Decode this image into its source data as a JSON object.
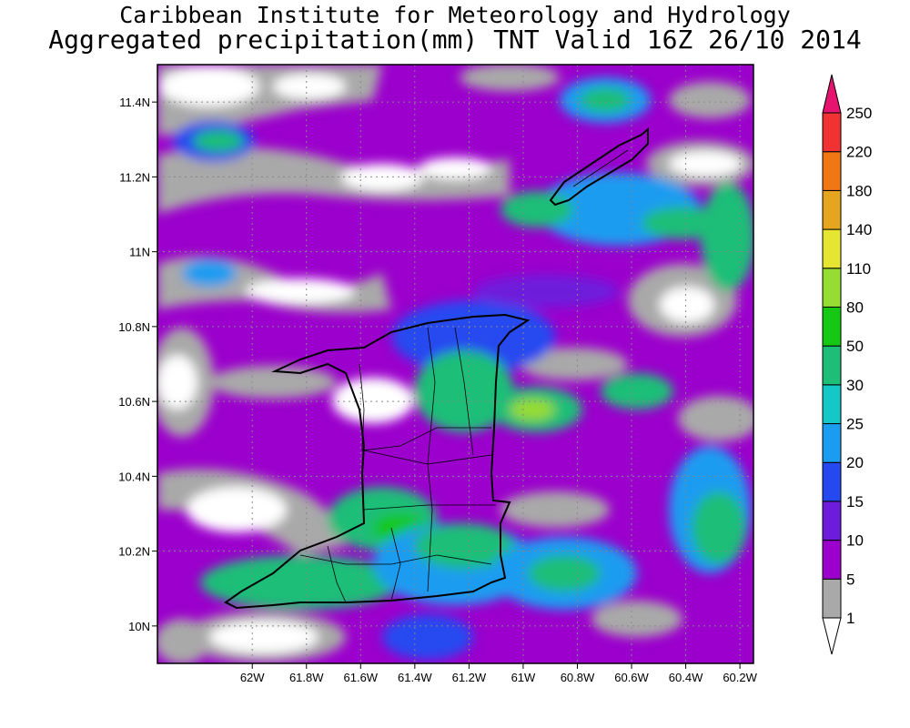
{
  "title": {
    "line1": "Caribbean Institute for Meteorology and Hydrology",
    "line2": "Aggregated precipitation(mm) TNT Valid 16Z 26/10 2014"
  },
  "map": {
    "lon_range": [
      -62.35,
      -60.15
    ],
    "lat_range": [
      9.9,
      11.5
    ],
    "x_ticks": [
      {
        "lon": -62.0,
        "label": "62W"
      },
      {
        "lon": -61.8,
        "label": "61.8W"
      },
      {
        "lon": -61.6,
        "label": "61.6W"
      },
      {
        "lon": -61.4,
        "label": "61.4W"
      },
      {
        "lon": -61.2,
        "label": "61.2W"
      },
      {
        "lon": -61.0,
        "label": "61W"
      },
      {
        "lon": -60.8,
        "label": "60.8W"
      },
      {
        "lon": -60.6,
        "label": "60.6W"
      },
      {
        "lon": -60.4,
        "label": "60.4W"
      },
      {
        "lon": -60.2,
        "label": "60.2W"
      }
    ],
    "y_ticks": [
      {
        "lat": 10.0,
        "label": "10N"
      },
      {
        "lat": 10.2,
        "label": "10.2N"
      },
      {
        "lat": 10.4,
        "label": "10.4N"
      },
      {
        "lat": 10.6,
        "label": "10.6N"
      },
      {
        "lat": 10.8,
        "label": "10.8N"
      },
      {
        "lat": 11.0,
        "label": "11N"
      },
      {
        "lat": 11.2,
        "label": "11.2N"
      },
      {
        "lat": 11.4,
        "label": "11.4N"
      }
    ],
    "grid": true,
    "grid_style": "dotted",
    "islands": [
      "Trinidad",
      "Tobago"
    ]
  },
  "colorbar": {
    "levels": [
      "1",
      "5",
      "10",
      "15",
      "20",
      "25",
      "30",
      "50",
      "80",
      "110",
      "140",
      "180",
      "220",
      "250"
    ],
    "colors": [
      "#ffffff",
      "#a9a9a9",
      "#9b00cc",
      "#6e1cdc",
      "#2648f0",
      "#1a9cf0",
      "#14c8c8",
      "#1ebe78",
      "#14c814",
      "#96dc32",
      "#e6e632",
      "#e6a51e",
      "#f07814",
      "#f03232",
      "#e6146e"
    ]
  }
}
